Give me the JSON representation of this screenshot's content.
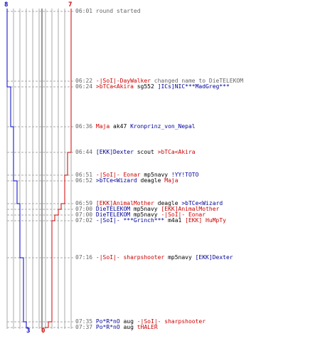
{
  "scores": {
    "blue_start": "8",
    "red_start": "7",
    "blue_end": "3",
    "red_end": "0"
  },
  "colors": {
    "blue": "#0000cc",
    "red": "#cc0000",
    "grid": "#aaaaaa",
    "center": "#777777",
    "text_grey": "#666666"
  },
  "log": [
    {
      "time": "06:01",
      "parts": [
        {
          "text": "round started",
          "c": "msg"
        }
      ]
    },
    {
      "time": "06:22",
      "parts": [
        {
          "text": "-|SoI|-DayWalker",
          "c": "red"
        },
        {
          "text": " changed name to ",
          "c": "msg"
        },
        {
          "text": "DieTELEKOM",
          "c": "msg"
        }
      ]
    },
    {
      "time": "06:24",
      "parts": [
        {
          "text": ">bTCa<Akira",
          "c": "red"
        },
        {
          "text": " sg552 ",
          "c": "plain"
        },
        {
          "text": "]ICs]NIC***MadGreg***",
          "c": "blue"
        }
      ]
    },
    {
      "time": "06:36",
      "parts": [
        {
          "text": "Maja",
          "c": "red"
        },
        {
          "text": " ak47 ",
          "c": "plain"
        },
        {
          "text": "Kronprinz_von_Nepal",
          "c": "blue"
        }
      ]
    },
    {
      "time": "06:44",
      "parts": [
        {
          "text": "[EKK]Dexter",
          "c": "blue"
        },
        {
          "text": " scout ",
          "c": "plain"
        },
        {
          "text": ">bTCa<Akira",
          "c": "red"
        }
      ]
    },
    {
      "time": "06:51",
      "parts": [
        {
          "text": "-|SoI|- Eonar",
          "c": "red"
        },
        {
          "text": " mp5navy ",
          "c": "plain"
        },
        {
          "text": "!YY!TOTO",
          "c": "blue"
        }
      ]
    },
    {
      "time": "06:52",
      "parts": [
        {
          "text": ">bTCe<Wizard",
          "c": "blue"
        },
        {
          "text": " deagle ",
          "c": "plain"
        },
        {
          "text": "Maja",
          "c": "red"
        }
      ]
    },
    {
      "time": "06:59",
      "parts": [
        {
          "text": "[EKK]AnimalMother",
          "c": "red"
        },
        {
          "text": " deagle ",
          "c": "plain"
        },
        {
          "text": ">bTCe<Wizard",
          "c": "blue"
        }
      ]
    },
    {
      "time": "07:00",
      "parts": [
        {
          "text": "DieTELEKOM",
          "c": "blue"
        },
        {
          "text": " mp5navy ",
          "c": "plain"
        },
        {
          "text": "[EKK]AnimalMother",
          "c": "red"
        }
      ]
    },
    {
      "time": "07:00",
      "parts": [
        {
          "text": "DieTELEKOM",
          "c": "blue"
        },
        {
          "text": " mp5navy ",
          "c": "plain"
        },
        {
          "text": "-|SoI|- Eonar",
          "c": "red"
        }
      ]
    },
    {
      "time": "07:02",
      "parts": [
        {
          "text": "-|SoI|- ***Grinch***",
          "c": "blue"
        },
        {
          "text": " m4a1 ",
          "c": "plain"
        },
        {
          "text": "[EKK] HuMpTy",
          "c": "red"
        }
      ]
    },
    {
      "time": "07:16",
      "parts": [
        {
          "text": "-|SoI|- sharpshooter",
          "c": "red"
        },
        {
          "text": " mp5navy ",
          "c": "plain"
        },
        {
          "text": "[EKK]Dexter",
          "c": "blue"
        }
      ]
    },
    {
      "time": "07:35",
      "parts": [
        {
          "text": "Po*R*nO",
          "c": "blue"
        },
        {
          "text": " aug ",
          "c": "plain"
        },
        {
          "text": "-|SoI|- sharpshooter",
          "c": "red"
        }
      ]
    },
    {
      "time": "07:37",
      "parts": [
        {
          "text": "Po*R*nO",
          "c": "blue"
        },
        {
          "text": " aug ",
          "c": "plain"
        },
        {
          "text": "tHALER",
          "c": "red"
        }
      ]
    }
  ]
}
